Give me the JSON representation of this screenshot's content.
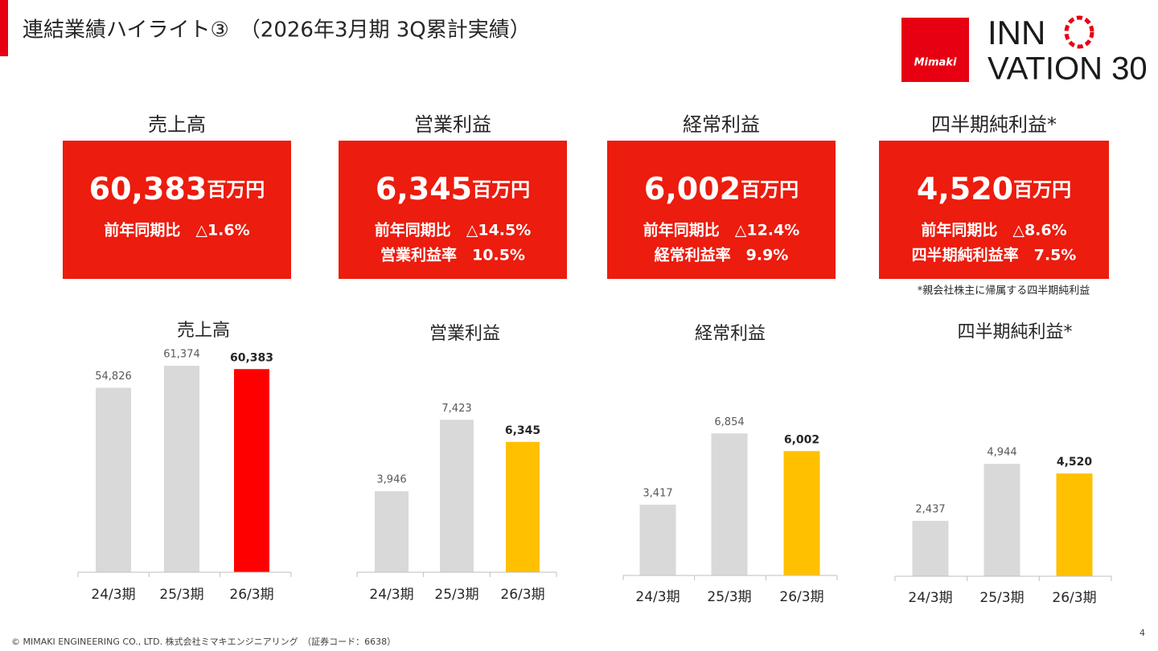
{
  "header": {
    "title": "連結業績ハイライト③　（2026年3月期 3Q累計実績）"
  },
  "logo": {
    "brand": "Mimaki",
    "line1": "INN",
    "line2": "VATION 30"
  },
  "kpis": [
    {
      "title": "売上高",
      "value": "60,383",
      "unit": "百万円",
      "lines": [
        "前年同期比　△1.6%"
      ]
    },
    {
      "title": "営業利益",
      "value": "6,345",
      "unit": "百万円",
      "lines": [
        "前年同期比　△14.5%",
        "営業利益率　10.5%"
      ]
    },
    {
      "title": "経常利益",
      "value": "6,002",
      "unit": "百万円",
      "lines": [
        "前年同期比　△12.4%",
        "経常利益率　9.9%"
      ]
    },
    {
      "title": "四半期純利益*",
      "value": "4,520",
      "unit": "百万円",
      "lines": [
        "前年同期比　△8.6%",
        "四半期純利益率　7.5%"
      ]
    }
  ],
  "note": "*親会社株主に帰属する四半期純利益",
  "chart_data": [
    {
      "type": "bar",
      "title": "売上高",
      "categories": [
        "24/3期",
        "25/3期",
        "26/3期"
      ],
      "values": [
        54826,
        61374,
        60383
      ],
      "value_labels": [
        "54,826",
        "61,374",
        "60,383"
      ],
      "colors": [
        "#d9d9d9",
        "#d9d9d9",
        "#ff0000"
      ],
      "ylim": [
        0,
        70000
      ]
    },
    {
      "type": "bar",
      "title": "営業利益",
      "categories": [
        "24/3期",
        "25/3期",
        "26/3期"
      ],
      "values": [
        3946,
        7423,
        6345
      ],
      "value_labels": [
        "3,946",
        "7,423",
        "6,345"
      ],
      "colors": [
        "#d9d9d9",
        "#d9d9d9",
        "#ffc000"
      ],
      "ylim": [
        0,
        9000
      ]
    },
    {
      "type": "bar",
      "title": "経常利益",
      "categories": [
        "24/3期",
        "25/3期",
        "26/3期"
      ],
      "values": [
        3417,
        6854,
        6002
      ],
      "value_labels": [
        "3,417",
        "6,854",
        "6,002"
      ],
      "colors": [
        "#d9d9d9",
        "#d9d9d9",
        "#ffc000"
      ],
      "ylim": [
        0,
        9000
      ]
    },
    {
      "type": "bar",
      "title": "四半期純利益*",
      "categories": [
        "24/3期",
        "25/3期",
        "26/3期"
      ],
      "values": [
        2437,
        4944,
        4520
      ],
      "value_labels": [
        "2,437",
        "4,944",
        "4,520"
      ],
      "colors": [
        "#d9d9d9",
        "#d9d9d9",
        "#ffc000"
      ],
      "ylim": [
        0,
        7000
      ]
    }
  ],
  "footer": {
    "copyright": "© MIMAKI ENGINEERING CO., LTD. 株式会社ミマキエンジニアリング　（証券コード：6638）",
    "page": "4"
  }
}
